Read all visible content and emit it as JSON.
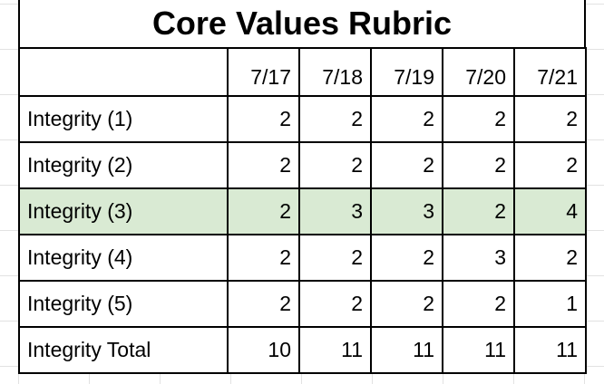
{
  "title": "Core Values Rubric",
  "highlight_color": "#d9ead3",
  "columns": [
    "7/17",
    "7/18",
    "7/19",
    "7/20",
    "7/21"
  ],
  "rows": [
    {
      "label": "Integrity (1)",
      "values": [
        "2",
        "2",
        "2",
        "2",
        "2"
      ]
    },
    {
      "label": "Integrity (2)",
      "values": [
        "2",
        "2",
        "2",
        "2",
        "2"
      ]
    },
    {
      "label": "Integrity (3)",
      "values": [
        "2",
        "3",
        "3",
        "2",
        "4"
      ],
      "highlighted": true
    },
    {
      "label": "Integrity (4)",
      "values": [
        "2",
        "2",
        "2",
        "3",
        "2"
      ]
    },
    {
      "label": "Integrity (5)",
      "values": [
        "2",
        "2",
        "2",
        "2",
        "1"
      ]
    },
    {
      "label": "Integrity Total",
      "values": [
        "10",
        "11",
        "11",
        "11",
        "11"
      ]
    }
  ]
}
